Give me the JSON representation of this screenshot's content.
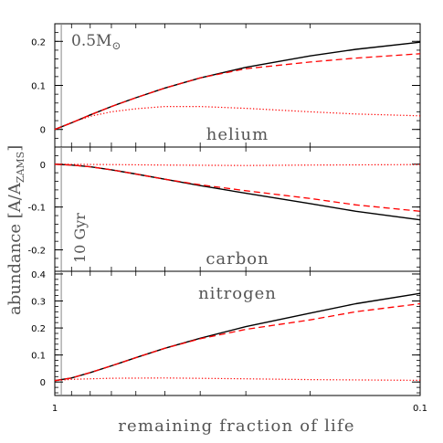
{
  "chart_data": {
    "type": "line",
    "xlabel": "remaining fraction of life",
    "ylabel": "abundance [A/A",
    "ylabel_sub": "ZAMS",
    "ylabel_end": "]",
    "x_scale": "log",
    "x_direction": "decreasing",
    "xlim": [
      1,
      0.1
    ],
    "x_tick_labels": [
      "1",
      "0.1"
    ],
    "mass_label": "0.5M",
    "mass_symbol": "⊙",
    "age_label": "10 Gyr",
    "vertical_marker_x": 0.96,
    "line_styles": {
      "solid": "#000000",
      "dashed": "#ff0000",
      "dotted": "#ff0000"
    },
    "panels": [
      {
        "name": "helium",
        "ylim": [
          -0.04,
          0.24
        ],
        "yticks": [
          0,
          0.1,
          0.2
        ],
        "ytick_labels": [
          "0",
          "0.1",
          "0.2"
        ],
        "series": [
          {
            "style": "solid",
            "x": [
              1,
              0.9,
              0.8,
              0.7,
              0.6,
              0.5,
              0.4,
              0.3,
              0.2,
              0.15,
              0.1
            ],
            "y": [
              0.0,
              0.015,
              0.033,
              0.052,
              0.072,
              0.094,
              0.117,
              0.141,
              0.167,
              0.182,
              0.198
            ]
          },
          {
            "style": "dashed",
            "x": [
              1,
              0.9,
              0.8,
              0.7,
              0.6,
              0.5,
              0.4,
              0.3,
              0.2,
              0.15,
              0.1
            ],
            "y": [
              0.0,
              0.015,
              0.033,
              0.052,
              0.072,
              0.094,
              0.117,
              0.138,
              0.153,
              0.162,
              0.172
            ]
          },
          {
            "style": "dotted",
            "x": [
              1,
              0.9,
              0.8,
              0.7,
              0.6,
              0.5,
              0.4,
              0.3,
              0.2,
              0.15,
              0.1
            ],
            "y": [
              0.0,
              0.016,
              0.03,
              0.04,
              0.047,
              0.052,
              0.052,
              0.048,
              0.04,
              0.035,
              0.031
            ]
          }
        ]
      },
      {
        "name": "carbon",
        "ylim": [
          -0.25,
          0.04
        ],
        "yticks": [
          0,
          -0.1,
          -0.2
        ],
        "ytick_labels": [
          "0",
          "-0.1",
          "-0.2"
        ],
        "series": [
          {
            "style": "solid",
            "x": [
              1,
              0.9,
              0.8,
              0.7,
              0.6,
              0.5,
              0.4,
              0.3,
              0.2,
              0.15,
              0.1
            ],
            "y": [
              0.0,
              -0.002,
              -0.006,
              -0.013,
              -0.023,
              -0.035,
              -0.05,
              -0.068,
              -0.092,
              -0.11,
              -0.13
            ]
          },
          {
            "style": "dashed",
            "x": [
              1,
              0.9,
              0.8,
              0.7,
              0.6,
              0.5,
              0.4,
              0.3,
              0.2,
              0.15,
              0.1
            ],
            "y": [
              0.0,
              -0.002,
              -0.006,
              -0.013,
              -0.023,
              -0.035,
              -0.048,
              -0.062,
              -0.08,
              -0.095,
              -0.11
            ]
          },
          {
            "style": "dotted",
            "x": [
              1,
              0.7,
              0.5,
              0.3,
              0.2,
              0.1
            ],
            "y": [
              0.0,
              -0.001,
              -0.002,
              -0.003,
              -0.002,
              -0.001
            ]
          }
        ]
      },
      {
        "name": "nitrogen",
        "ylim": [
          -0.05,
          0.41
        ],
        "yticks": [
          0,
          0.1,
          0.2,
          0.3,
          0.4
        ],
        "ytick_labels": [
          "0",
          "0.1",
          "0.2",
          "0.3",
          "0.4"
        ],
        "series": [
          {
            "style": "solid",
            "x": [
              1,
              0.9,
              0.8,
              0.7,
              0.6,
              0.5,
              0.4,
              0.3,
              0.2,
              0.15,
              0.1
            ],
            "y": [
              0.005,
              0.015,
              0.035,
              0.06,
              0.09,
              0.125,
              0.162,
              0.205,
              0.255,
              0.29,
              0.328
            ]
          },
          {
            "style": "dashed",
            "x": [
              1,
              0.9,
              0.8,
              0.7,
              0.6,
              0.5,
              0.4,
              0.3,
              0.2,
              0.15,
              0.1
            ],
            "y": [
              0.005,
              0.015,
              0.035,
              0.06,
              0.09,
              0.125,
              0.16,
              0.195,
              0.23,
              0.26,
              0.29
            ]
          },
          {
            "style": "dotted",
            "x": [
              1,
              0.9,
              0.7,
              0.5,
              0.3,
              0.2,
              0.1
            ],
            "y": [
              0.005,
              0.01,
              0.014,
              0.015,
              0.012,
              0.009,
              0.006
            ]
          }
        ]
      }
    ]
  }
}
